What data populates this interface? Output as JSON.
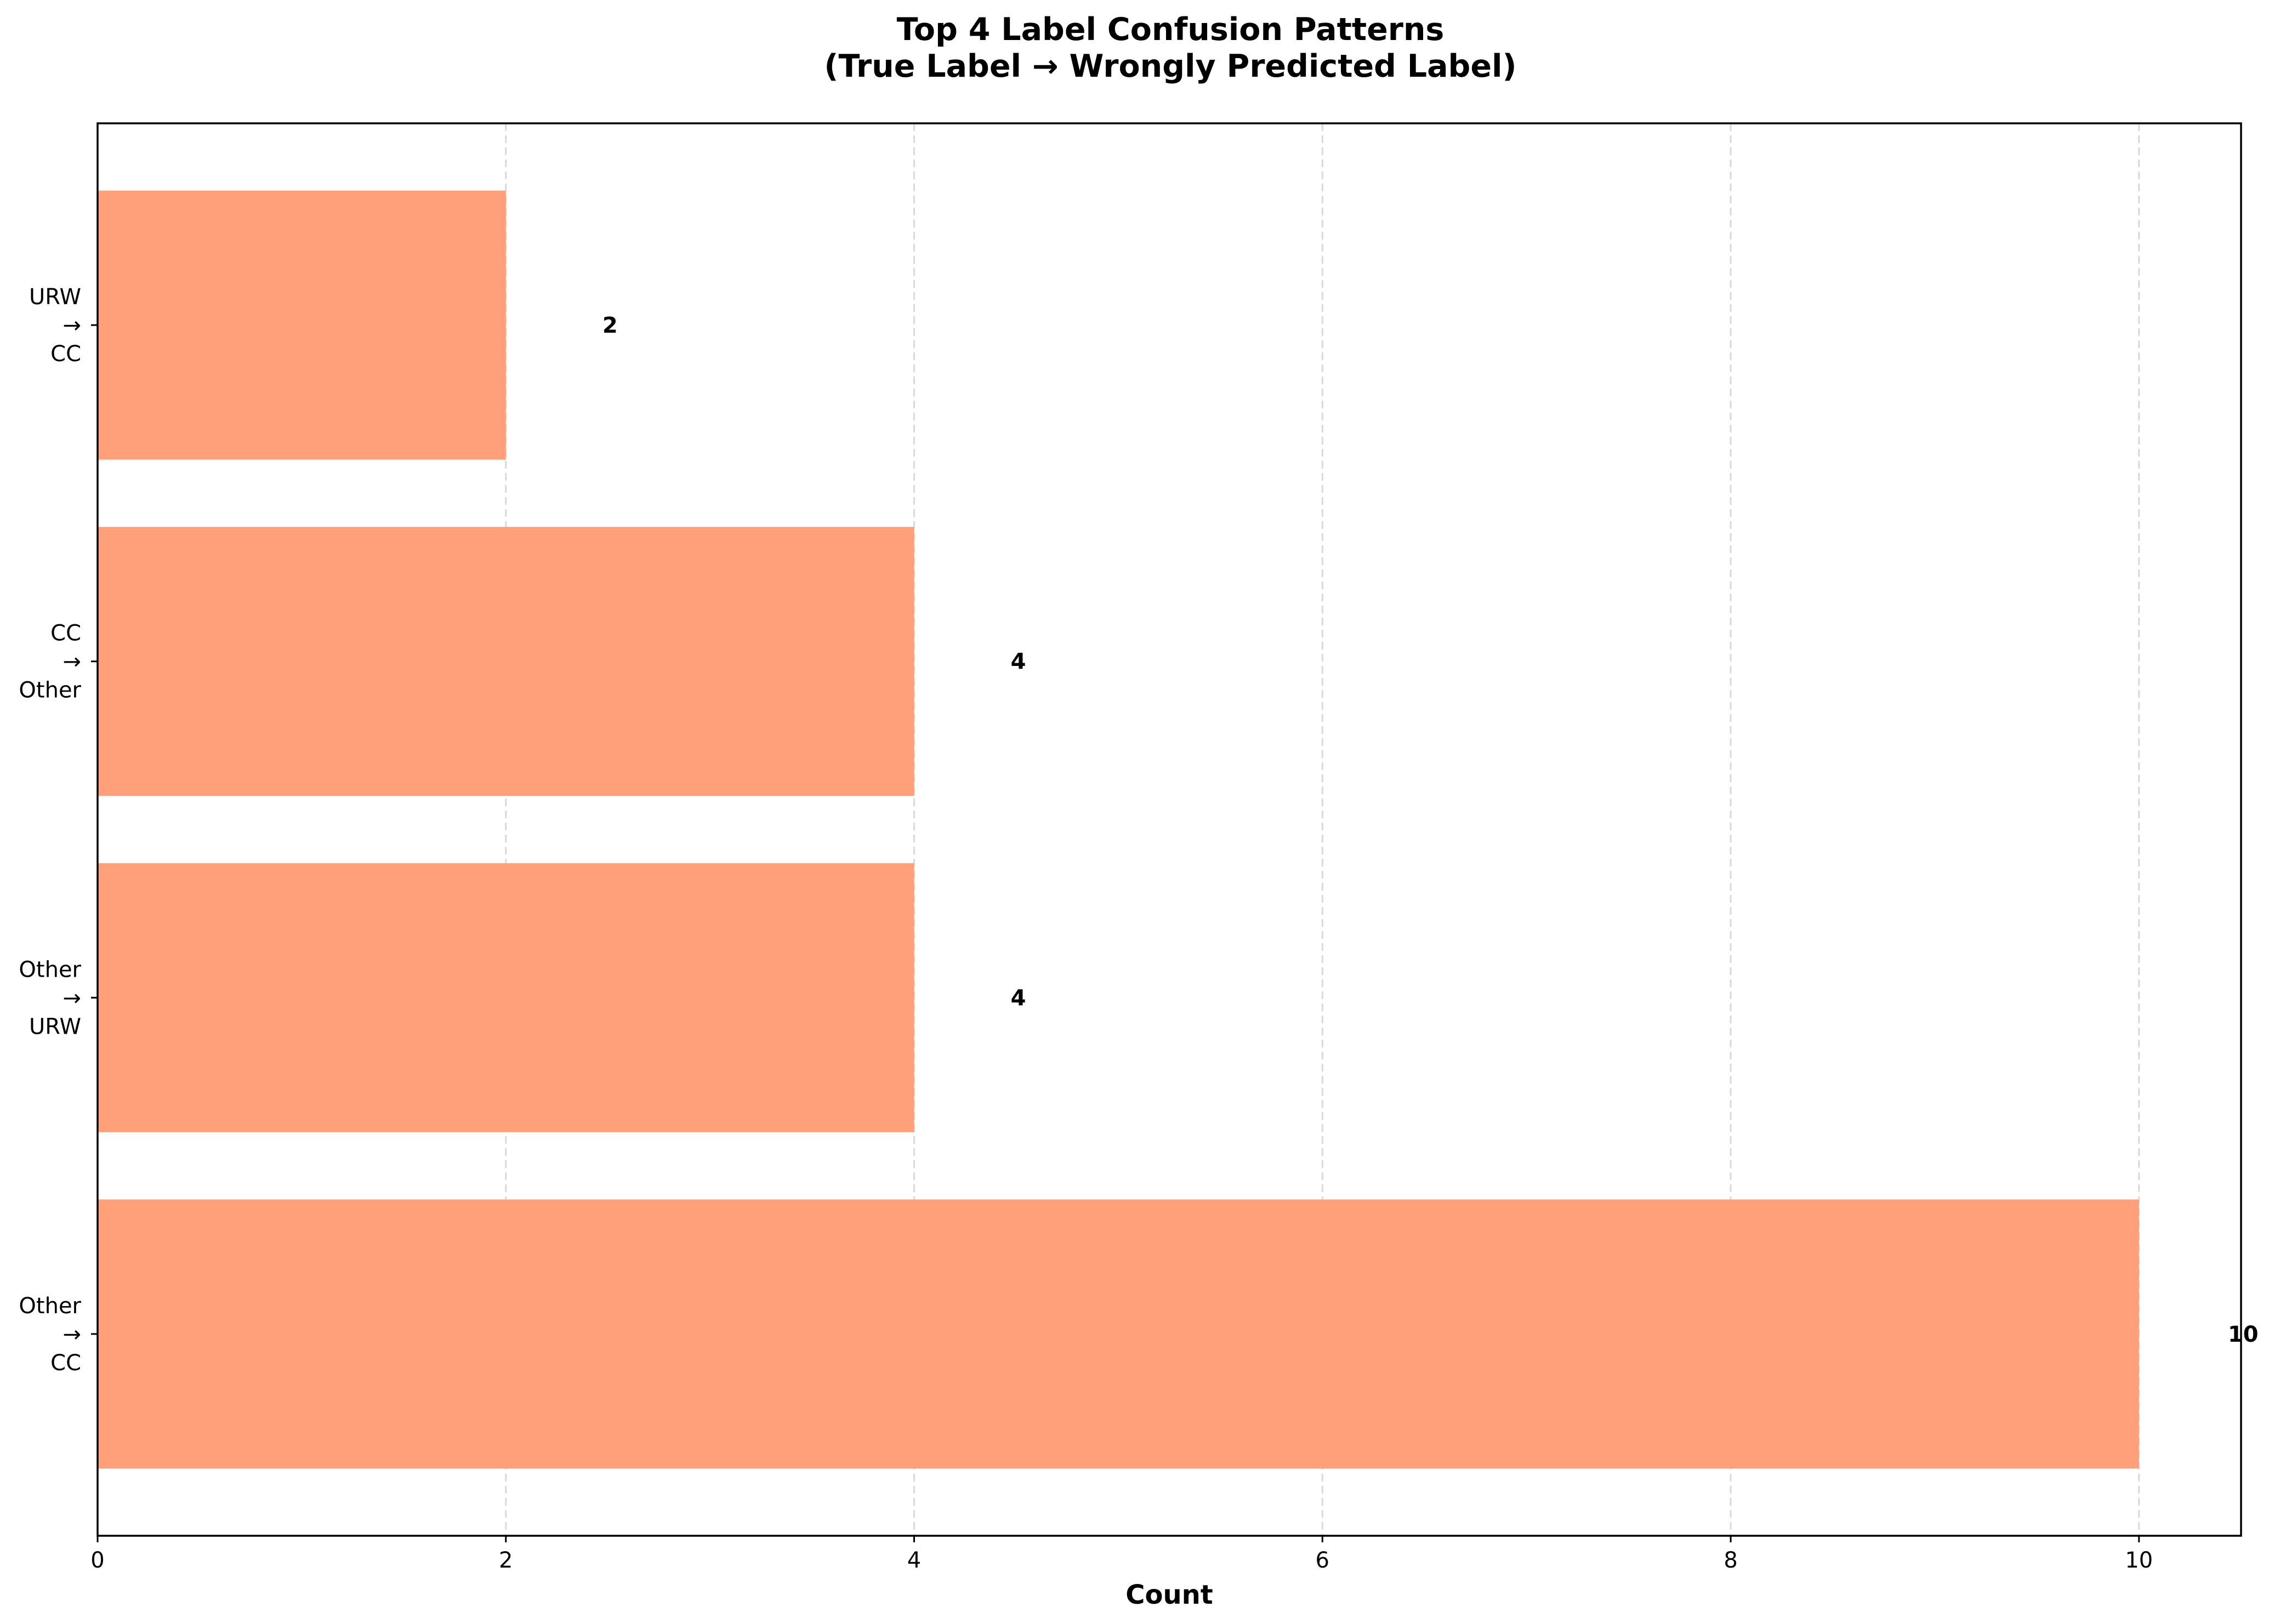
{
  "chart_data": {
    "type": "bar",
    "orientation": "horizontal",
    "title": "Top 4 Label Confusion Patterns",
    "subtitle": "(True Label → Wrongly Predicted Label)",
    "xlabel": "Count",
    "ylabel": "",
    "xlim": [
      0,
      10.5
    ],
    "xticks": [
      0,
      2,
      4,
      6,
      8,
      10
    ],
    "grid": "vertical dashed",
    "bar_color": "#ffa07a",
    "categories": [
      [
        "Other",
        "→",
        "CC"
      ],
      [
        "Other",
        "→",
        "URW"
      ],
      [
        "CC",
        "→",
        "Other"
      ],
      [
        "URW",
        "→",
        "CC"
      ]
    ],
    "values": [
      10,
      4,
      4,
      2
    ],
    "value_labels": [
      "10",
      "4",
      "4",
      "2"
    ]
  }
}
